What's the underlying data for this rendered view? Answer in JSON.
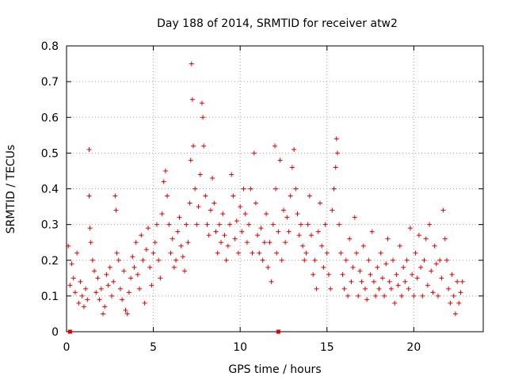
{
  "chart_data": {
    "type": "scatter",
    "title": "Day 188 of 2014, SRMTID for receiver atw2",
    "xlabel": "GPS time / hours",
    "ylabel": "SRMTID / TECUs",
    "xlim": [
      0,
      24
    ],
    "ylim": [
      0,
      0.8
    ],
    "x_ticks": [
      0,
      5,
      10,
      15,
      20
    ],
    "y_ticks": [
      0,
      0.1,
      0.2,
      0.3,
      0.4,
      0.5,
      0.6,
      0.7,
      0.8
    ],
    "x_tick_labels": [
      "0",
      "5",
      "10",
      "15",
      "20"
    ],
    "y_tick_labels": [
      "0",
      "0.1",
      "0.2",
      "0.3",
      "0.4",
      "0.5",
      "0.6",
      "0.7",
      "0.8"
    ],
    "grid": true,
    "marker": "plus",
    "color": "#e00000",
    "series": [
      {
        "name": "SRMTID",
        "points": [
          [
            0.1,
            0.24
          ],
          [
            0.2,
            0.13
          ],
          [
            0.3,
            0.19
          ],
          [
            0.4,
            0.15
          ],
          [
            0.5,
            0.11
          ],
          [
            0.6,
            0.22
          ],
          [
            0.7,
            0.08
          ],
          [
            0.8,
            0.14
          ],
          [
            0.9,
            0.1
          ],
          [
            1.0,
            0.07
          ],
          [
            1.1,
            0.12
          ],
          [
            1.2,
            0.09
          ],
          [
            1.3,
            0.51
          ],
          [
            1.3,
            0.38
          ],
          [
            1.35,
            0.29
          ],
          [
            1.4,
            0.25
          ],
          [
            1.5,
            0.2
          ],
          [
            1.6,
            0.17
          ],
          [
            1.7,
            0.11
          ],
          [
            1.8,
            0.15
          ],
          [
            1.9,
            0.09
          ],
          [
            2.0,
            0.12
          ],
          [
            2.1,
            0.05
          ],
          [
            2.2,
            0.07
          ],
          [
            2.3,
            0.16
          ],
          [
            2.4,
            0.13
          ],
          [
            2.5,
            0.18
          ],
          [
            2.6,
            0.1
          ],
          [
            2.7,
            0.14
          ],
          [
            2.8,
            0.38
          ],
          [
            2.85,
            0.34
          ],
          [
            2.9,
            0.22
          ],
          [
            3.0,
            0.2
          ],
          [
            3.1,
            0.12
          ],
          [
            3.2,
            0.09
          ],
          [
            3.3,
            0.17
          ],
          [
            3.4,
            0.06
          ],
          [
            3.5,
            0.05
          ],
          [
            3.6,
            0.11
          ],
          [
            3.7,
            0.15
          ],
          [
            3.8,
            0.21
          ],
          [
            3.9,
            0.18
          ],
          [
            4.0,
            0.25
          ],
          [
            4.1,
            0.16
          ],
          [
            4.2,
            0.12
          ],
          [
            4.3,
            0.27
          ],
          [
            4.4,
            0.2
          ],
          [
            4.5,
            0.08
          ],
          [
            4.6,
            0.23
          ],
          [
            4.7,
            0.29
          ],
          [
            4.8,
            0.18
          ],
          [
            4.9,
            0.13
          ],
          [
            5.0,
            0.22
          ],
          [
            5.1,
            0.25
          ],
          [
            5.2,
            0.3
          ],
          [
            5.3,
            0.2
          ],
          [
            5.4,
            0.15
          ],
          [
            5.5,
            0.33
          ],
          [
            5.6,
            0.42
          ],
          [
            5.7,
            0.45
          ],
          [
            5.8,
            0.38
          ],
          [
            5.9,
            0.3
          ],
          [
            6.0,
            0.22
          ],
          [
            6.1,
            0.26
          ],
          [
            6.2,
            0.18
          ],
          [
            6.3,
            0.2
          ],
          [
            6.4,
            0.28
          ],
          [
            6.5,
            0.32
          ],
          [
            6.6,
            0.24
          ],
          [
            6.7,
            0.21
          ],
          [
            6.8,
            0.17
          ],
          [
            6.9,
            0.3
          ],
          [
            7.0,
            0.25
          ],
          [
            7.1,
            0.36
          ],
          [
            7.15,
            0.48
          ],
          [
            7.2,
            0.75
          ],
          [
            7.25,
            0.65
          ],
          [
            7.3,
            0.52
          ],
          [
            7.4,
            0.4
          ],
          [
            7.5,
            0.3
          ],
          [
            7.6,
            0.35
          ],
          [
            7.7,
            0.44
          ],
          [
            7.8,
            0.64
          ],
          [
            7.85,
            0.6
          ],
          [
            7.9,
            0.52
          ],
          [
            8.0,
            0.38
          ],
          [
            8.1,
            0.3
          ],
          [
            8.2,
            0.27
          ],
          [
            8.3,
            0.34
          ],
          [
            8.4,
            0.43
          ],
          [
            8.5,
            0.36
          ],
          [
            8.6,
            0.28
          ],
          [
            8.7,
            0.22
          ],
          [
            8.8,
            0.3
          ],
          [
            8.9,
            0.25
          ],
          [
            9.0,
            0.33
          ],
          [
            9.1,
            0.27
          ],
          [
            9.2,
            0.2
          ],
          [
            9.3,
            0.24
          ],
          [
            9.4,
            0.3
          ],
          [
            9.5,
            0.44
          ],
          [
            9.6,
            0.38
          ],
          [
            9.7,
            0.26
          ],
          [
            9.8,
            0.31
          ],
          [
            9.9,
            0.22
          ],
          [
            10.0,
            0.35
          ],
          [
            10.1,
            0.28
          ],
          [
            10.2,
            0.4
          ],
          [
            10.3,
            0.33
          ],
          [
            10.4,
            0.25
          ],
          [
            10.5,
            0.3
          ],
          [
            10.6,
            0.4
          ],
          [
            10.7,
            0.22
          ],
          [
            10.8,
            0.5
          ],
          [
            10.9,
            0.36
          ],
          [
            11.0,
            0.27
          ],
          [
            11.1,
            0.22
          ],
          [
            11.2,
            0.29
          ],
          [
            11.3,
            0.2
          ],
          [
            11.4,
            0.25
          ],
          [
            11.5,
            0.33
          ],
          [
            11.6,
            0.18
          ],
          [
            11.7,
            0.25
          ],
          [
            11.8,
            0.14
          ],
          [
            11.9,
            0.3
          ],
          [
            12.0,
            0.52
          ],
          [
            12.05,
            0.4
          ],
          [
            12.1,
            0.22
          ],
          [
            12.2,
            0.28
          ],
          [
            12.3,
            0.48
          ],
          [
            12.4,
            0.2
          ],
          [
            12.5,
            0.34
          ],
          [
            12.6,
            0.25
          ],
          [
            12.7,
            0.32
          ],
          [
            12.8,
            0.28
          ],
          [
            12.9,
            0.38
          ],
          [
            13.0,
            0.46
          ],
          [
            13.1,
            0.51
          ],
          [
            13.2,
            0.4
          ],
          [
            13.3,
            0.33
          ],
          [
            13.4,
            0.27
          ],
          [
            13.5,
            0.3
          ],
          [
            13.6,
            0.24
          ],
          [
            13.7,
            0.2
          ],
          [
            13.8,
            0.22
          ],
          [
            13.9,
            0.3
          ],
          [
            14.0,
            0.38
          ],
          [
            14.1,
            0.27
          ],
          [
            14.2,
            0.16
          ],
          [
            14.3,
            0.2
          ],
          [
            14.4,
            0.12
          ],
          [
            14.5,
            0.28
          ],
          [
            14.6,
            0.36
          ],
          [
            14.7,
            0.24
          ],
          [
            14.8,
            0.18
          ],
          [
            14.9,
            0.3
          ],
          [
            15.0,
            0.22
          ],
          [
            15.1,
            0.16
          ],
          [
            15.2,
            0.12
          ],
          [
            15.3,
            0.34
          ],
          [
            15.4,
            0.4
          ],
          [
            15.5,
            0.46
          ],
          [
            15.55,
            0.54
          ],
          [
            15.6,
            0.5
          ],
          [
            15.7,
            0.3
          ],
          [
            15.8,
            0.22
          ],
          [
            15.9,
            0.16
          ],
          [
            16.0,
            0.12
          ],
          [
            16.1,
            0.2
          ],
          [
            16.2,
            0.1
          ],
          [
            16.3,
            0.26
          ],
          [
            16.4,
            0.14
          ],
          [
            16.5,
            0.18
          ],
          [
            16.6,
            0.32
          ],
          [
            16.7,
            0.22
          ],
          [
            16.8,
            0.1
          ],
          [
            16.9,
            0.17
          ],
          [
            17.0,
            0.14
          ],
          [
            17.1,
            0.24
          ],
          [
            17.2,
            0.12
          ],
          [
            17.3,
            0.09
          ],
          [
            17.4,
            0.2
          ],
          [
            17.5,
            0.16
          ],
          [
            17.6,
            0.28
          ],
          [
            17.7,
            0.14
          ],
          [
            17.8,
            0.1
          ],
          [
            17.9,
            0.18
          ],
          [
            18.0,
            0.12
          ],
          [
            18.1,
            0.22
          ],
          [
            18.2,
            0.15
          ],
          [
            18.3,
            0.1
          ],
          [
            18.4,
            0.19
          ],
          [
            18.5,
            0.26
          ],
          [
            18.6,
            0.14
          ],
          [
            18.7,
            0.12
          ],
          [
            18.8,
            0.2
          ],
          [
            18.9,
            0.08
          ],
          [
            19.0,
            0.16
          ],
          [
            19.1,
            0.13
          ],
          [
            19.2,
            0.24
          ],
          [
            19.3,
            0.1
          ],
          [
            19.4,
            0.18
          ],
          [
            19.5,
            0.14
          ],
          [
            19.6,
            0.2
          ],
          [
            19.7,
            0.12
          ],
          [
            19.8,
            0.29
          ],
          [
            19.9,
            0.16
          ],
          [
            20.0,
            0.1
          ],
          [
            20.1,
            0.22
          ],
          [
            20.2,
            0.15
          ],
          [
            20.3,
            0.27
          ],
          [
            20.4,
            0.18
          ],
          [
            20.5,
            0.1
          ],
          [
            20.6,
            0.2
          ],
          [
            20.7,
            0.26
          ],
          [
            20.8,
            0.13
          ],
          [
            20.9,
            0.3
          ],
          [
            21.0,
            0.17
          ],
          [
            21.1,
            0.11
          ],
          [
            21.2,
            0.24
          ],
          [
            21.3,
            0.19
          ],
          [
            21.4,
            0.1
          ],
          [
            21.5,
            0.2
          ],
          [
            21.6,
            0.15
          ],
          [
            21.7,
            0.34
          ],
          [
            21.8,
            0.26
          ],
          [
            21.9,
            0.2
          ],
          [
            22.0,
            0.12
          ],
          [
            22.1,
            0.08
          ],
          [
            22.2,
            0.16
          ],
          [
            22.3,
            0.1
          ],
          [
            22.4,
            0.05
          ],
          [
            22.5,
            0.14
          ],
          [
            22.6,
            0.08
          ],
          [
            22.7,
            0.11
          ],
          [
            22.8,
            0.14
          ]
        ]
      }
    ],
    "markers_at_zero": [
      0.2,
      12.2
    ]
  }
}
